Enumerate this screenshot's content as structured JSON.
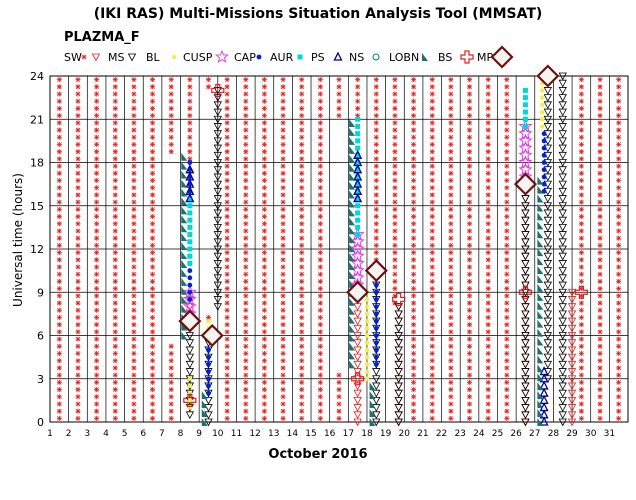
{
  "chart_data": {
    "type": "scatter",
    "title": "(IKI RAS) Multi-Missions Situation Analysis Tool (MMSAT)",
    "subtitle": "PLAZMA_F",
    "xlabel": "October 2016",
    "ylabel": "Universal time (hours)",
    "xlim": [
      1,
      32
    ],
    "ylim": [
      0,
      24
    ],
    "x_ticks": [
      "1",
      "2",
      "3",
      "4",
      "5",
      "6",
      "7",
      "8",
      "9",
      "10",
      "11",
      "12",
      "13",
      "14",
      "15",
      "16",
      "17",
      "18",
      "19",
      "20",
      "21",
      "22",
      "23",
      "24",
      "25",
      "26",
      "27",
      "28",
      "29",
      "30",
      "31"
    ],
    "y_ticks": [
      "0",
      "3",
      "6",
      "9",
      "12",
      "15",
      "18",
      "21",
      "24"
    ],
    "grid": true,
    "legend_position": "top",
    "legend": [
      {
        "key": "SW",
        "label": "SW",
        "color": "#e02020"
      },
      {
        "key": "MS",
        "label": "MS",
        "color": "#e02020"
      },
      {
        "key": "BL",
        "label": "BL",
        "color": "#000000"
      },
      {
        "key": "CUSP",
        "label": "CUSP",
        "color": "#f0f040"
      },
      {
        "key": "CAP",
        "label": "CAP",
        "color": "#e040e0"
      },
      {
        "key": "AUR",
        "label": "AUR",
        "color": "#0020e0"
      },
      {
        "key": "PS",
        "label": "PS",
        "color": "#00d8d8"
      },
      {
        "key": "NS",
        "label": "NS",
        "color": "#000090"
      },
      {
        "key": "LOBN",
        "label": "LOBN",
        "color": "#008060"
      },
      {
        "key": "BS",
        "label": "BS",
        "color": "#207070"
      },
      {
        "key": "MP",
        "label": "MP",
        "color": "#e02020"
      },
      {
        "key": "MPD",
        "label": "",
        "color": "#6b1010"
      }
    ],
    "series": [
      {
        "name": "SW",
        "x": [
          1,
          2,
          3,
          4,
          5,
          6,
          7,
          8,
          9,
          10,
          11,
          12,
          13,
          14,
          15,
          16,
          17,
          18,
          19,
          20,
          21,
          22,
          23,
          24,
          25,
          26,
          27,
          28,
          29,
          30,
          31
        ],
        "y_from": 0,
        "y_to": 24,
        "step": 0.5,
        "note": "background coverage except other regions"
      },
      {
        "name": "MS",
        "segments": [
          [
            8.5,
            6.5,
            8.5
          ],
          [
            17.5,
            0,
            9
          ],
          [
            19.7,
            0,
            8
          ],
          [
            26.5,
            0,
            16
          ],
          [
            29,
            0,
            9
          ]
        ]
      },
      {
        "name": "BL",
        "segments": [
          [
            8.5,
            0.5,
            6.5
          ],
          [
            9.5,
            0,
            6
          ],
          [
            10,
            8,
            23
          ],
          [
            18.5,
            0,
            10
          ],
          [
            19.7,
            0,
            8
          ],
          [
            26.5,
            0,
            16
          ],
          [
            27.7,
            3,
            24
          ],
          [
            28.5,
            0,
            24
          ]
        ]
      },
      {
        "name": "CUSP",
        "segments": [
          [
            8.5,
            1,
            3
          ],
          [
            18,
            3,
            9
          ],
          [
            27.4,
            20.5,
            24
          ],
          [
            9.5,
            6,
            7
          ]
        ]
      },
      {
        "name": "CAP",
        "segments": [
          [
            8.5,
            7,
            9
          ],
          [
            17.5,
            9.5,
            13
          ],
          [
            26.5,
            17,
            20.5
          ]
        ]
      },
      {
        "name": "AUR",
        "segments": [
          [
            8.5,
            8.5,
            18
          ],
          [
            9.5,
            2,
            5
          ],
          [
            18.5,
            4,
            10
          ],
          [
            27.5,
            16,
            20
          ]
        ]
      },
      {
        "name": "PS",
        "segments": [
          [
            8.5,
            11,
            15.5
          ],
          [
            17.5,
            13,
            21
          ],
          [
            26.5,
            20.5,
            23
          ]
        ]
      },
      {
        "name": "NS",
        "segments": [
          [
            8.5,
            15.5,
            17.5
          ],
          [
            17.5,
            15.5,
            18.5
          ],
          [
            27.5,
            0,
            3.5
          ]
        ]
      },
      {
        "name": "BS",
        "segments": [
          [
            8.2,
            6,
            18.5
          ],
          [
            9.3,
            0,
            2
          ],
          [
            17.2,
            4,
            21
          ],
          [
            18.3,
            0,
            3
          ],
          [
            27.3,
            0,
            17
          ]
        ]
      },
      {
        "name": "MP",
        "points": [
          [
            10,
            23
          ],
          [
            17.5,
            3
          ],
          [
            19.7,
            8.5
          ],
          [
            26.5,
            9
          ],
          [
            29.5,
            9
          ],
          [
            8.5,
            1.5
          ]
        ]
      },
      {
        "name": "MPD",
        "points": [
          [
            8.5,
            7
          ],
          [
            9.7,
            6
          ],
          [
            17.5,
            9
          ],
          [
            18.5,
            10.5
          ],
          [
            26.5,
            16.5
          ],
          [
            27.7,
            24
          ]
        ]
      }
    ]
  }
}
